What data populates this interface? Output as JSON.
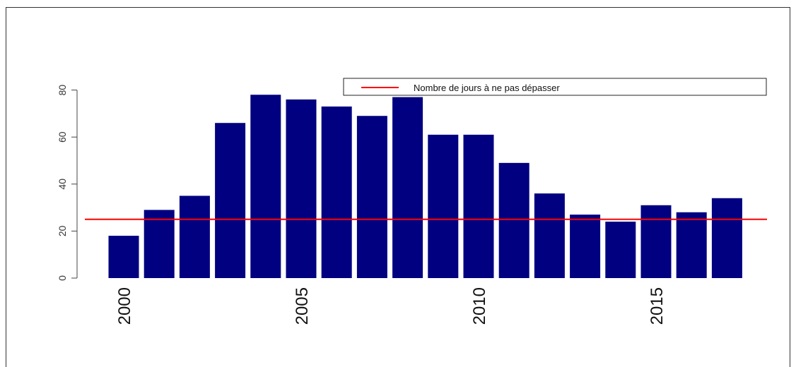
{
  "chart_data": {
    "type": "bar",
    "x": [
      2000,
      2001,
      2002,
      2003,
      2004,
      2005,
      2006,
      2007,
      2008,
      2009,
      2010,
      2011,
      2012,
      2013,
      2014,
      2015,
      2016,
      2017
    ],
    "values": [
      18,
      29,
      35,
      66,
      78,
      76,
      73,
      69,
      77,
      61,
      61,
      49,
      36,
      27,
      24,
      31,
      28,
      34
    ],
    "bar_color": "#000080",
    "ylim": [
      0,
      85
    ],
    "yticks": [
      0,
      20,
      40,
      60,
      80
    ],
    "xtick_labels": [
      "2000",
      "2005",
      "2010",
      "2015"
    ],
    "xtick_years": [
      2000,
      2005,
      2010,
      2015
    ],
    "threshold": {
      "value": 25,
      "color": "#ff0000",
      "label": "Nombre de jours à ne pas dépasser"
    },
    "legend_position": "top-right",
    "title": "",
    "xlabel": "",
    "ylabel": "",
    "grid": false
  }
}
